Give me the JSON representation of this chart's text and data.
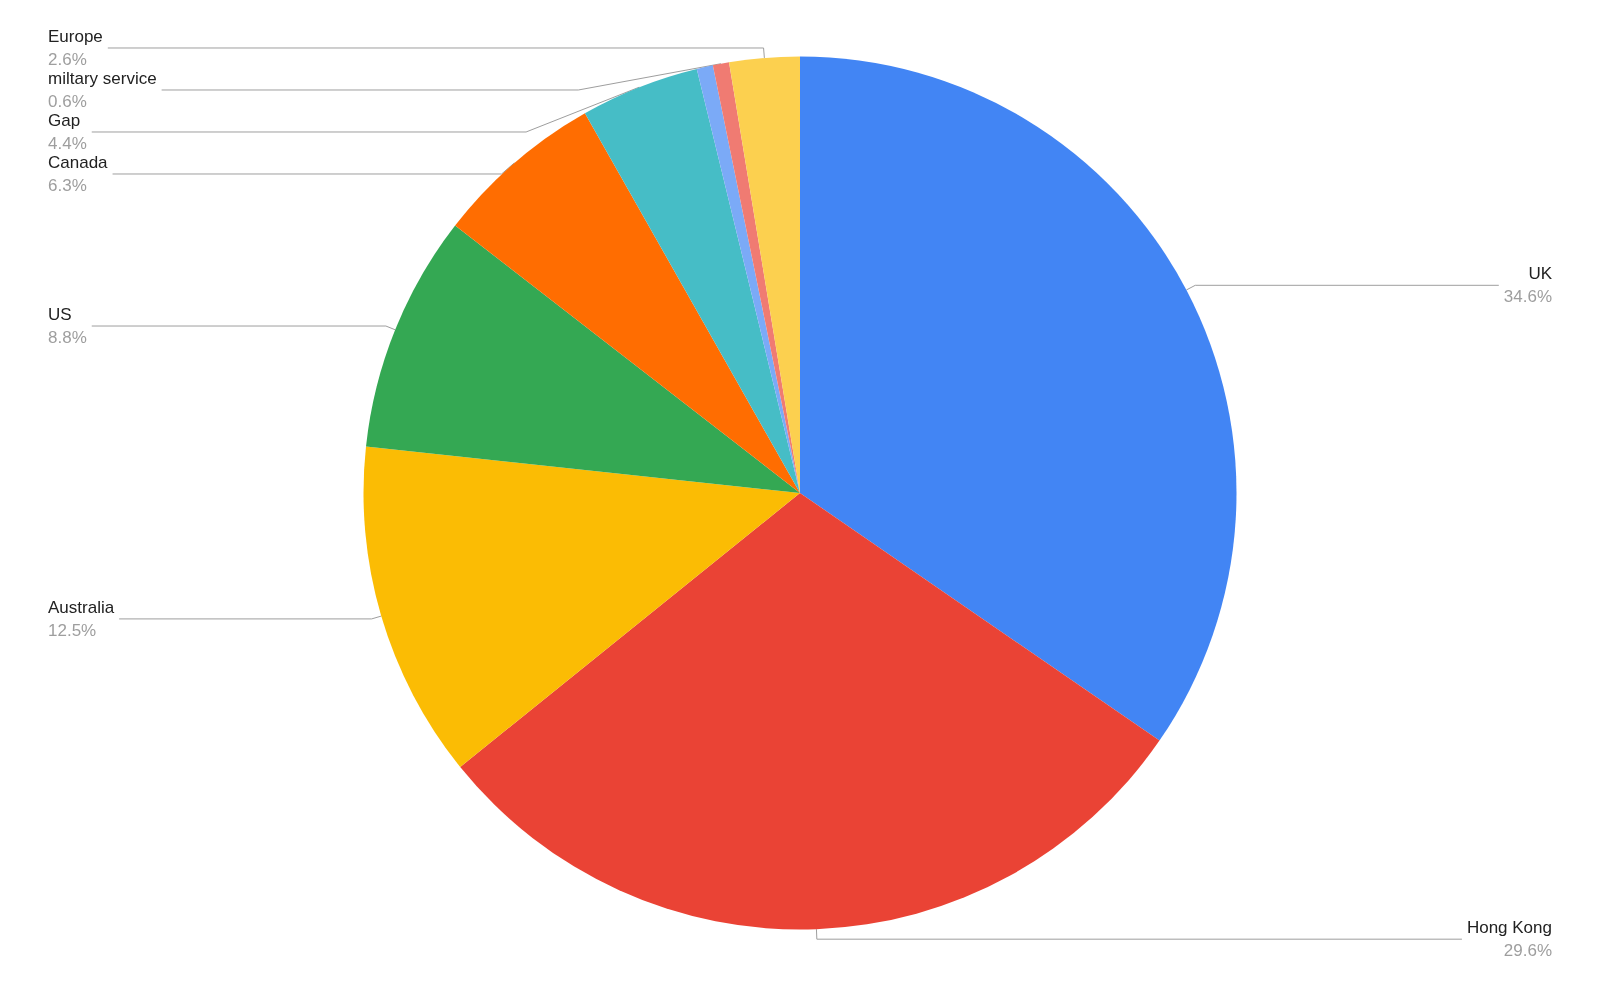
{
  "chart_data": {
    "type": "pie",
    "categories": [
      "UK",
      "Hong Kong",
      "Australia",
      "US",
      "Canada",
      "Gap",
      null,
      "miltary service",
      "Europe"
    ],
    "values": [
      34.6,
      29.6,
      12.5,
      8.8,
      6.3,
      4.4,
      0.6,
      0.6,
      2.6
    ],
    "value_labels": [
      "34.6%",
      "29.6%",
      "12.5%",
      "8.8%",
      "6.3%",
      "4.4%",
      null,
      "0.6%",
      "2.6%"
    ],
    "colors": [
      "#4285f4",
      "#ea4335",
      "#fbbc04",
      "#34a853",
      "#ff6d01",
      "#46bdc6",
      "#7baaf7",
      "#f07b72",
      "#fcd04f"
    ],
    "legend": false
  }
}
